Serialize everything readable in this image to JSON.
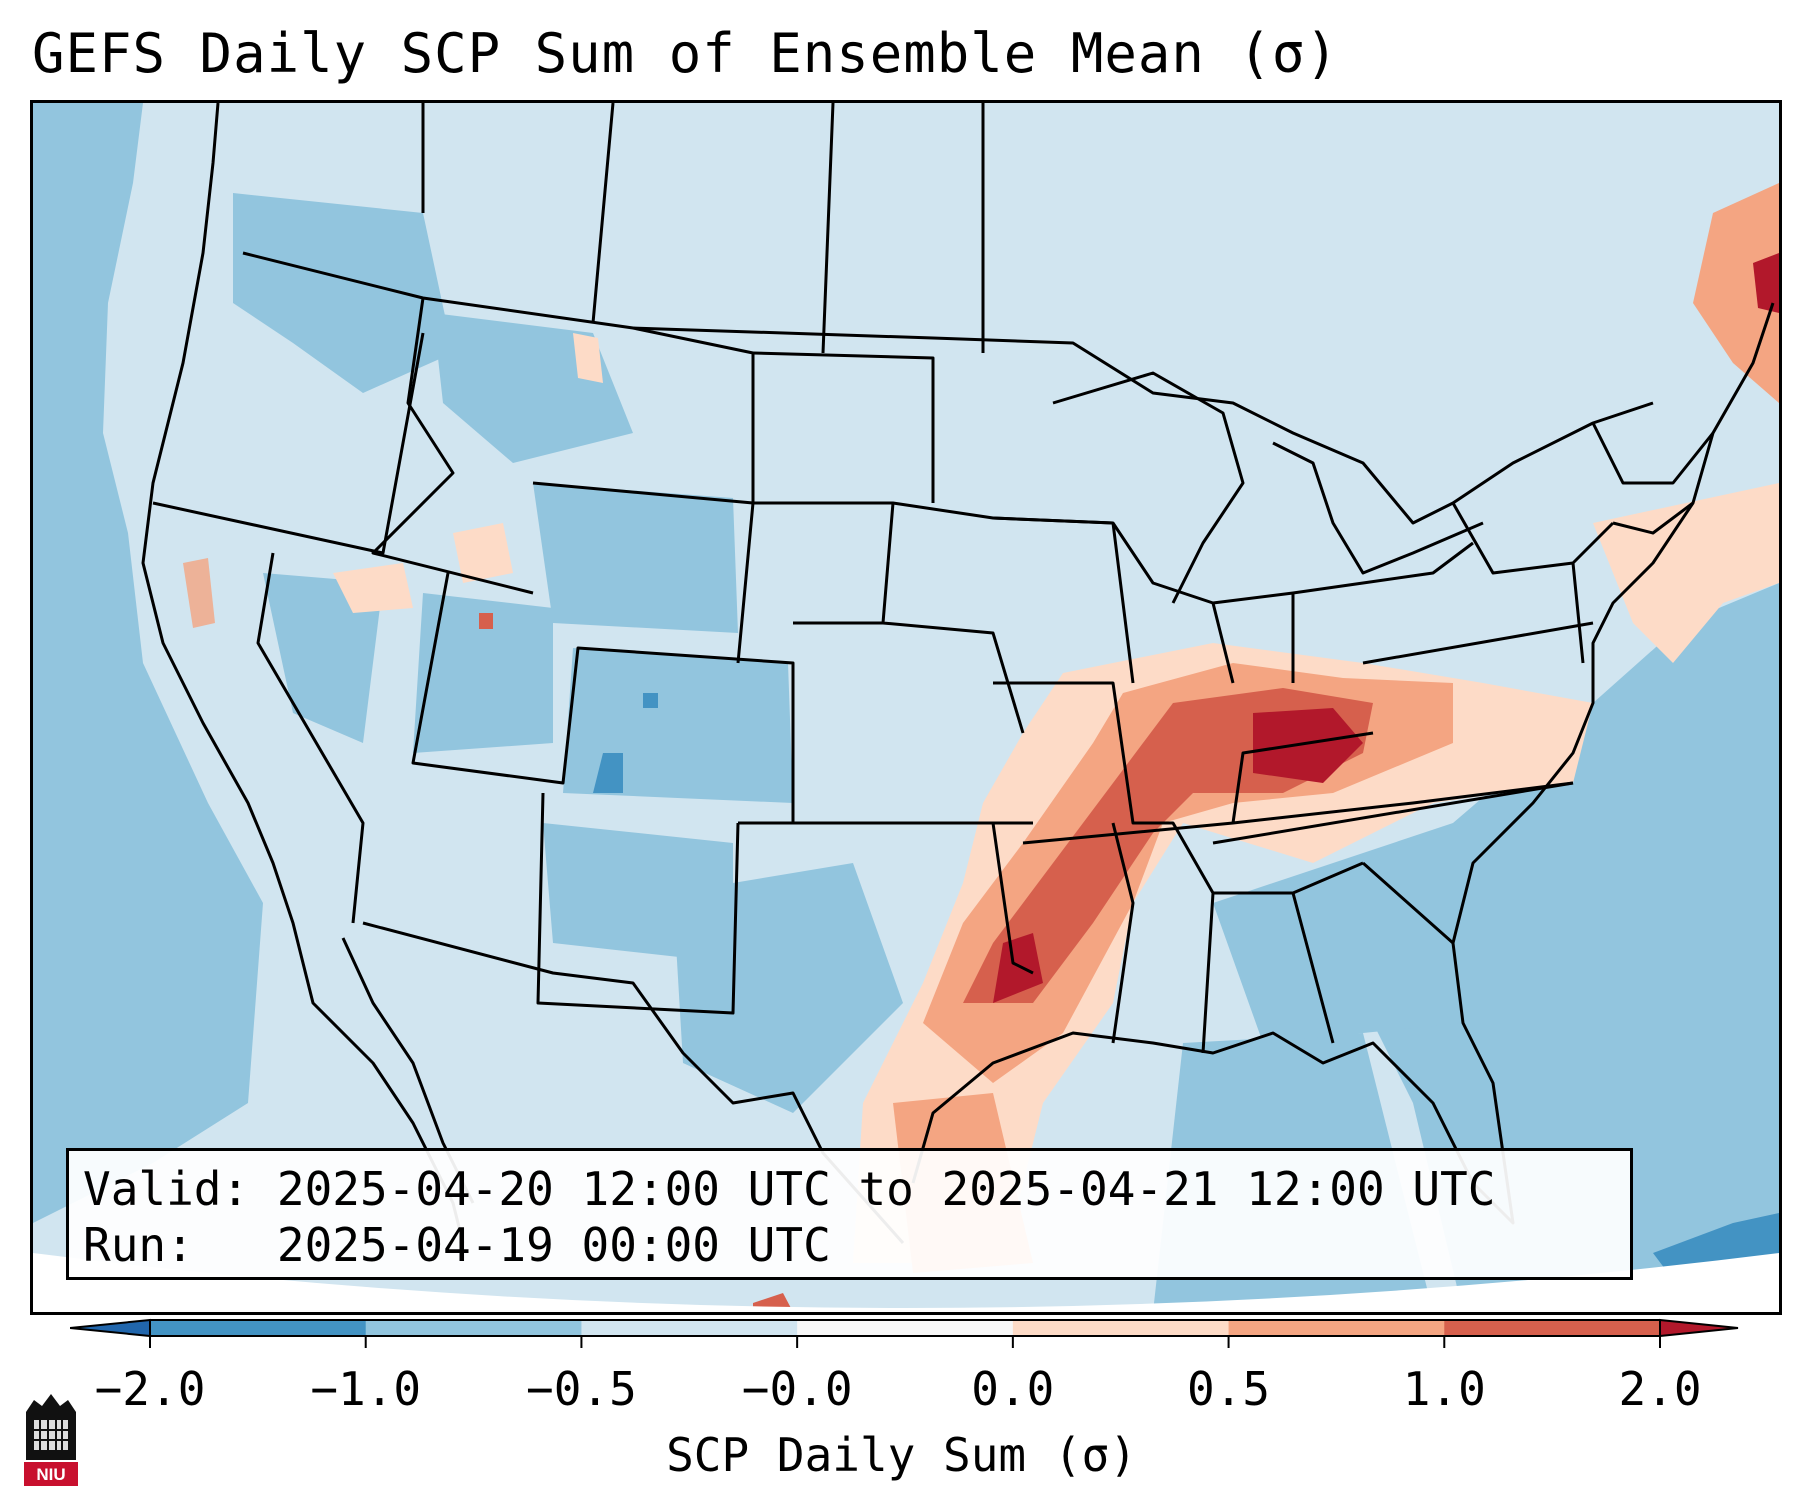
{
  "title": "GEFS Daily SCP Sum of Ensemble Mean (σ)",
  "info": {
    "valid_label": "Valid:",
    "valid_value": "2025-04-20 12:00 UTC to 2025-04-21 12:00 UTC",
    "run_label": "Run:",
    "run_value": "2025-04-19 00:00 UTC"
  },
  "colorbar": {
    "label": "SCP Daily Sum (σ)",
    "ticks": [
      "−2.0",
      "−1.0",
      "−0.5",
      "−0.0",
      "0.0",
      "0.5",
      "1.0",
      "2.0"
    ],
    "colors": [
      "#4393c3",
      "#92c5de",
      "#d1e5f0",
      "#f7f7f7",
      "#fddbc7",
      "#f4a582",
      "#d6604d"
    ],
    "extend_low_color": "#2166ac",
    "extend_high_color": "#b2182b"
  },
  "logo": {
    "text": "NIU"
  }
}
